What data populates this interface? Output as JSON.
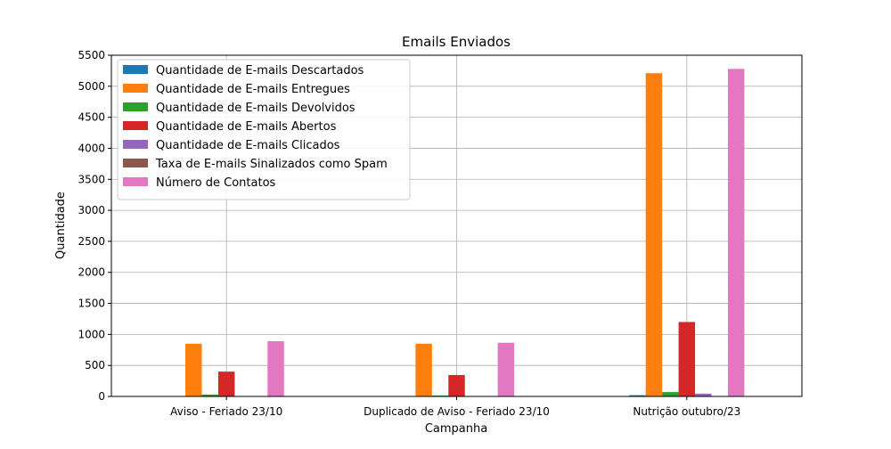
{
  "chart_data": {
    "type": "bar",
    "title": "Emails Enviados",
    "xlabel": "Campanha",
    "ylabel": "Quantidade",
    "categories": [
      "Aviso - Feriado 23/10",
      "Duplicado de Aviso - Feriado 23/10",
      "Nutrição outubro/23"
    ],
    "ylim": [
      0,
      5500
    ],
    "yticks": [
      0,
      500,
      1000,
      1500,
      2000,
      2500,
      3000,
      3500,
      4000,
      4500,
      5000,
      5500
    ],
    "grid": true,
    "legend_position": "top-left",
    "series": [
      {
        "name": "Quantidade de E-mails Descartados",
        "color": "#1f77b4",
        "values": [
          2,
          1,
          20
        ]
      },
      {
        "name": "Quantidade de E-mails Entregues",
        "color": "#ff7f0e",
        "values": [
          850,
          850,
          5210
        ]
      },
      {
        "name": "Quantidade de E-mails Devolvidos",
        "color": "#2ca02c",
        "values": [
          30,
          15,
          70
        ]
      },
      {
        "name": "Quantidade de E-mails Abertos",
        "color": "#d62728",
        "values": [
          400,
          345,
          1200
        ]
      },
      {
        "name": "Quantidade de E-mails Clicados",
        "color": "#9467bd",
        "values": [
          3,
          2,
          45
        ]
      },
      {
        "name": "Taxa de E-mails Sinalizados como Spam",
        "color": "#8c564b",
        "values": [
          0,
          0,
          0
        ]
      },
      {
        "name": "Número de Contatos",
        "color": "#e377c2",
        "values": [
          890,
          865,
          5280
        ]
      }
    ]
  }
}
